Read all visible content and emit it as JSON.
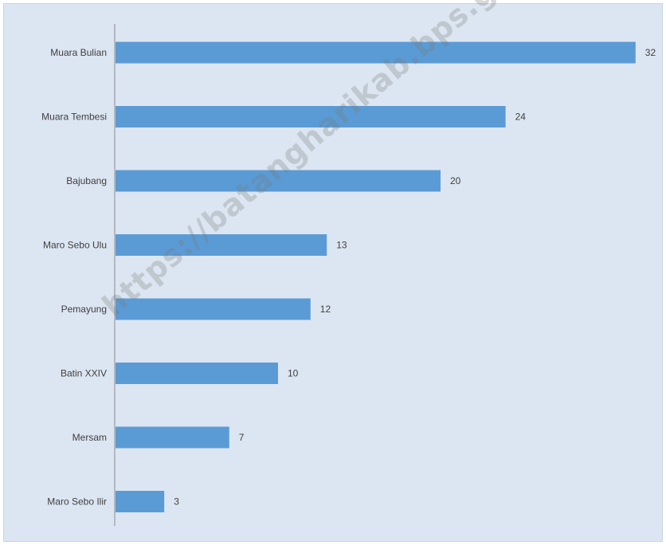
{
  "chart_data": {
    "type": "bar",
    "orientation": "horizontal",
    "categories": [
      "Muara Bulian",
      "Muara Tembesi",
      "Bajubang",
      "Maro Sebo Ulu",
      "Pemayung",
      "Batin XXIV",
      "Mersam",
      "Maro Sebo Ilir"
    ],
    "values": [
      32,
      24,
      20,
      13,
      12,
      10,
      7,
      3
    ],
    "title": "",
    "xlabel": "",
    "ylabel": "",
    "xlim": [
      0,
      32
    ],
    "grid": false,
    "legend": "none",
    "bar_color": "#5b9bd5",
    "background_color": "#dce6f2"
  },
  "watermark": "https://batangharikab.bps.go.id"
}
